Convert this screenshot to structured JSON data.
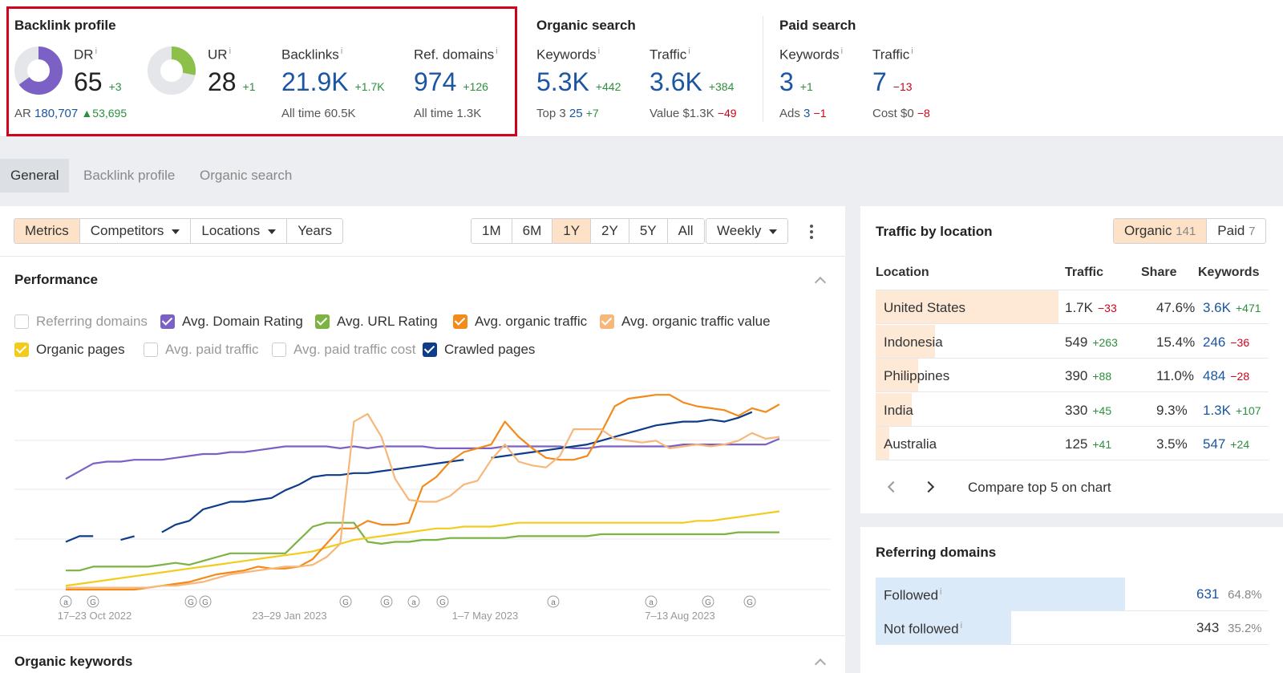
{
  "top": {
    "backlink_profile": {
      "title": "Backlink profile",
      "dr": {
        "label": "DR",
        "value": "65",
        "delta": "+3",
        "ring_fraction": 0.65
      },
      "ar": {
        "label": "AR",
        "value": "180,707",
        "delta": "▲53,695"
      },
      "ur": {
        "label": "UR",
        "value": "28",
        "delta": "+1",
        "ring_fraction": 0.28
      },
      "backlinks": {
        "label": "Backlinks",
        "value": "21.9K",
        "delta": "+1.7K",
        "sub_label": "All time",
        "sub_value": "60.5K"
      },
      "ref_domains": {
        "label": "Ref. domains",
        "value": "974",
        "delta": "+126",
        "sub_label": "All time",
        "sub_value": "1.3K"
      }
    },
    "organic_search": {
      "title": "Organic search",
      "keywords": {
        "label": "Keywords",
        "value": "5.3K",
        "delta": "+442",
        "sub_label": "Top 3",
        "sub_value": "25",
        "sub_delta": "+7"
      },
      "traffic": {
        "label": "Traffic",
        "value": "3.6K",
        "delta": "+384",
        "sub_label": "Value",
        "sub_value": "$1.3K",
        "sub_delta": "−49"
      }
    },
    "paid_search": {
      "title": "Paid search",
      "keywords": {
        "label": "Keywords",
        "value": "3",
        "delta": "+1",
        "sub_label": "Ads",
        "sub_value": "3",
        "sub_delta": "−1"
      },
      "traffic": {
        "label": "Traffic",
        "value": "7",
        "delta": "−13",
        "sub_label": "Cost",
        "sub_value": "$0",
        "sub_delta": "−8"
      }
    },
    "info_mark": "i"
  },
  "tabs": [
    "General",
    "Backlink profile",
    "Organic search"
  ],
  "toolbar": {
    "view_buttons": [
      "Metrics",
      "Competitors",
      "Locations",
      "Years"
    ],
    "range_buttons": [
      "1M",
      "6M",
      "1Y",
      "2Y",
      "5Y",
      "All"
    ],
    "interval": "Weekly"
  },
  "performance": {
    "title": "Performance",
    "checkboxes": [
      {
        "label": "Referring domains",
        "checked": false,
        "color": "#c8ccd1"
      },
      {
        "label": "Avg. Domain Rating",
        "checked": true,
        "color": "#7b61c4"
      },
      {
        "label": "Avg. URL Rating",
        "checked": true,
        "color": "#7cb342"
      },
      {
        "label": "Avg. organic traffic",
        "checked": true,
        "color": "#f28a1c"
      },
      {
        "label": "Avg. organic traffic value",
        "checked": true,
        "color": "#f7b77a"
      },
      {
        "label": "Organic pages",
        "checked": true,
        "color": "#f3cb1d"
      },
      {
        "label": "Avg. paid traffic",
        "checked": false,
        "color": "#c8ccd1"
      },
      {
        "label": "Avg. paid traffic cost",
        "checked": false,
        "color": "#c8ccd1"
      },
      {
        "label": "Crawled pages",
        "checked": true,
        "color": "#0d3c8a"
      }
    ]
  },
  "chart_data": {
    "type": "line",
    "x_tick_labels": [
      "17–23 Oct 2022",
      "23–29 Jan 2023",
      "1–7 May 2023",
      "7–13 Aug 2023"
    ],
    "annotation_markers": [
      "a",
      "G",
      "G",
      "G",
      "G",
      "G",
      "a",
      "G",
      "a",
      "a",
      "G",
      "G"
    ],
    "series": [
      {
        "name": "Avg. Domain Rating",
        "color": "#7b61c4",
        "values": [
          0.58,
          0.62,
          0.66,
          0.67,
          0.67,
          0.68,
          0.68,
          0.68,
          0.69,
          0.7,
          0.71,
          0.71,
          0.72,
          0.72,
          0.73,
          0.74,
          0.75,
          0.75,
          0.75,
          0.75,
          0.74,
          0.75,
          0.74,
          0.75,
          0.75,
          0.75,
          0.75,
          0.74,
          0.74,
          0.74,
          0.74,
          0.74,
          0.75,
          0.75,
          0.75,
          0.75,
          0.75,
          0.74,
          0.74,
          0.75,
          0.75,
          0.75,
          0.75,
          0.75,
          0.75,
          0.76,
          0.76,
          0.76,
          0.76,
          0.76,
          0.76,
          0.76,
          0.79
        ]
      },
      {
        "name": "Crawled pages",
        "color": "#0d3c8a",
        "values": [
          0.25,
          0.28,
          0.28,
          null,
          0.26,
          0.28,
          null,
          0.3,
          0.34,
          0.36,
          0.42,
          0.44,
          0.46,
          0.46,
          0.47,
          0.48,
          0.52,
          0.55,
          0.59,
          0.6,
          0.6,
          0.61,
          0.61,
          0.62,
          0.63,
          0.64,
          0.65,
          0.66,
          0.67,
          0.68,
          null,
          0.69,
          0.7,
          0.71,
          0.72,
          0.73,
          0.74,
          0.75,
          0.76,
          0.78,
          0.8,
          0.82,
          0.84,
          0.86,
          0.87,
          0.88,
          0.88,
          0.89,
          0.88,
          0.9,
          0.93,
          null,
          0.94
        ]
      },
      {
        "name": "Avg. URL Rating",
        "color": "#7cb342",
        "values": [
          0.1,
          0.1,
          0.12,
          0.12,
          0.12,
          0.12,
          0.12,
          0.13,
          0.14,
          0.13,
          0.15,
          0.17,
          0.19,
          0.19,
          0.19,
          0.19,
          0.19,
          0.26,
          0.33,
          0.35,
          0.35,
          0.35,
          0.25,
          0.24,
          0.25,
          0.25,
          0.26,
          0.26,
          0.27,
          0.27,
          0.27,
          0.27,
          0.27,
          0.28,
          0.28,
          0.28,
          0.28,
          0.28,
          0.28,
          0.29,
          0.29,
          0.29,
          0.29,
          0.29,
          0.29,
          0.29,
          0.29,
          0.29,
          0.29,
          0.3,
          0.3,
          0.3,
          0.3
        ]
      },
      {
        "name": "Organic pages",
        "color": "#f3cb1d",
        "values": [
          0.02,
          0.03,
          0.04,
          0.05,
          0.06,
          0.07,
          0.08,
          0.09,
          0.1,
          0.11,
          0.12,
          0.13,
          0.14,
          0.15,
          0.16,
          0.17,
          0.18,
          0.19,
          0.2,
          0.22,
          0.24,
          0.26,
          0.27,
          0.28,
          0.29,
          0.3,
          0.31,
          0.32,
          0.32,
          0.33,
          0.33,
          0.33,
          0.34,
          0.35,
          0.35,
          0.35,
          0.35,
          0.35,
          0.35,
          0.35,
          0.35,
          0.35,
          0.35,
          0.35,
          0.35,
          0.35,
          0.36,
          0.36,
          0.37,
          0.38,
          0.39,
          0.4,
          0.41
        ]
      },
      {
        "name": "Avg. organic traffic",
        "color": "#f28a1c",
        "values": [
          0.0,
          0.0,
          0.0,
          0.0,
          0.0,
          0.0,
          0.01,
          0.02,
          0.03,
          0.04,
          0.06,
          0.08,
          0.09,
          0.1,
          0.12,
          0.11,
          0.11,
          0.12,
          0.16,
          0.24,
          0.32,
          0.32,
          0.36,
          0.34,
          0.34,
          0.35,
          0.54,
          0.59,
          0.67,
          0.72,
          0.74,
          0.76,
          0.88,
          0.8,
          0.74,
          0.69,
          0.68,
          0.68,
          0.7,
          0.82,
          0.96,
          1.0,
          1.01,
          1.02,
          1.02,
          0.98,
          0.96,
          0.95,
          0.94,
          0.91,
          0.95,
          0.93,
          0.97
        ]
      },
      {
        "name": "Avg. organic traffic value",
        "color": "#f7b77a",
        "values": [
          0.01,
          0.01,
          0.01,
          0.01,
          0.01,
          0.01,
          0.01,
          0.02,
          0.02,
          0.03,
          0.04,
          0.06,
          0.08,
          0.09,
          0.1,
          0.11,
          0.12,
          0.12,
          0.13,
          0.17,
          0.24,
          0.88,
          0.92,
          0.8,
          0.58,
          0.47,
          0.46,
          0.46,
          0.49,
          0.55,
          0.57,
          0.68,
          0.76,
          0.67,
          0.65,
          0.64,
          0.7,
          0.84,
          0.84,
          0.84,
          0.79,
          0.78,
          0.77,
          0.78,
          0.74,
          0.75,
          0.76,
          0.75,
          0.76,
          0.78,
          0.82,
          0.79,
          0.8
        ]
      }
    ]
  },
  "traffic_by_location": {
    "title": "Traffic by location",
    "toggle": {
      "organic_label": "Organic",
      "organic_count": "141",
      "paid_label": "Paid",
      "paid_count": "7"
    },
    "columns": [
      "Location",
      "Traffic",
      "Share",
      "Keywords"
    ],
    "rows": [
      {
        "location": "United States",
        "traffic": "1.7K",
        "traffic_delta": "−33",
        "share": "47.6%",
        "share_fraction": 0.476,
        "keywords": "3.6K",
        "keywords_delta": "+471"
      },
      {
        "location": "Indonesia",
        "traffic": "549",
        "traffic_delta": "+263",
        "share": "15.4%",
        "share_fraction": 0.154,
        "keywords": "246",
        "keywords_delta": "−36"
      },
      {
        "location": "Philippines",
        "traffic": "390",
        "traffic_delta": "+88",
        "share": "11.0%",
        "share_fraction": 0.11,
        "keywords": "484",
        "keywords_delta": "−28"
      },
      {
        "location": "India",
        "traffic": "330",
        "traffic_delta": "+45",
        "share": "9.3%",
        "share_fraction": 0.093,
        "keywords": "1.3K",
        "keywords_delta": "+107"
      },
      {
        "location": "Australia",
        "traffic": "125",
        "traffic_delta": "+41",
        "share": "3.5%",
        "share_fraction": 0.035,
        "keywords": "547",
        "keywords_delta": "+24"
      }
    ],
    "compare_label": "Compare top 5 on chart"
  },
  "referring_domains": {
    "title": "Referring domains",
    "rows": [
      {
        "label": "Followed",
        "value": "631",
        "pct": "64.8%",
        "fraction": 0.648
      },
      {
        "label": "Not followed",
        "value": "343",
        "pct": "35.2%",
        "fraction": 0.352
      }
    ]
  },
  "organic_keywords": {
    "title": "Organic keywords"
  }
}
